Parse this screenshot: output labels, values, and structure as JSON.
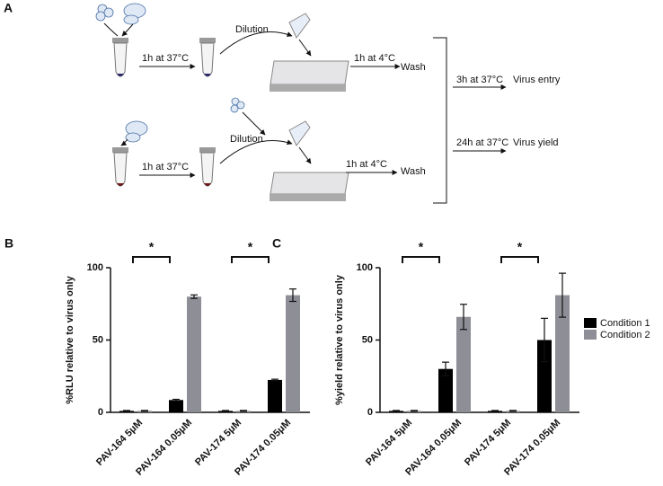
{
  "diagram": {
    "panel": "A",
    "rows": [
      {
        "incubation": "1h at 37°C",
        "dilution": "Dilution",
        "binding": "1h at 4°C",
        "wash": "Wash"
      },
      {
        "incubation": "1h at 37°C",
        "dilution": "Dilution",
        "binding": "1h at 4°C",
        "wash": "Wash"
      }
    ],
    "outcomes": [
      {
        "step": "3h at 37°C",
        "label": "Virus entry"
      },
      {
        "step": "24h at 37°C",
        "label": "Virus yield"
      }
    ]
  },
  "chart_data": [
    {
      "type": "bar",
      "panel": "B",
      "y_label": "%RLU relative to virus only",
      "categories": [
        "PAV-164 5μM",
        "PAV-164 0.05μM",
        "PAV-174 5μM",
        "PAV-174 0.05μM"
      ],
      "series": [
        {
          "name": "Condition 1",
          "color": "#000000",
          "values": [
            1,
            8.5,
            1,
            22.4
          ],
          "errors": [
            0.3,
            0.5,
            0.3,
            0.5
          ]
        },
        {
          "name": "Condition 2",
          "color": "#8e8e96",
          "values": [
            1,
            80,
            1,
            81
          ],
          "errors": [
            0.3,
            1.2,
            0.3,
            4.3
          ]
        }
      ],
      "ylim": [
        0,
        100
      ],
      "yticks": [
        0,
        50,
        100
      ],
      "annotations": [
        "*",
        "*"
      ],
      "legend": false
    },
    {
      "type": "bar",
      "panel": "C",
      "y_label": "%yield relative to virus only",
      "categories": [
        "PAV-164 5μM",
        "PAV-164 0.05μM",
        "PAV-174 5μM",
        "PAV-174 0.05μM"
      ],
      "series": [
        {
          "name": "Condition 1",
          "color": "#000000",
          "values": [
            1,
            30,
            1,
            50
          ],
          "errors": [
            0.3,
            4.7,
            0.3,
            15
          ]
        },
        {
          "name": "Condition 2",
          "color": "#8e8e96",
          "values": [
            1,
            66,
            1,
            81
          ],
          "errors": [
            0.3,
            8.7,
            0.3,
            15.2
          ]
        }
      ],
      "ylim": [
        0,
        100
      ],
      "yticks": [
        0,
        50,
        100
      ],
      "annotations": [
        "*",
        "*"
      ],
      "legend": "right"
    }
  ]
}
